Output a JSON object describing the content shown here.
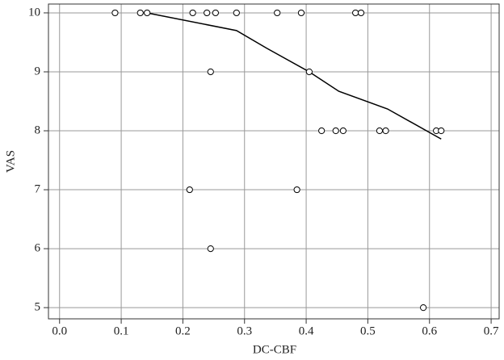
{
  "chart_data": {
    "type": "scatter",
    "x_label": "DC-CBF",
    "y_label": "VAS",
    "points": {
      "color": "#000000",
      "x": [
        0.09,
        0.131,
        0.142,
        0.216,
        0.239,
        0.253,
        0.287,
        0.353,
        0.392,
        0.48,
        0.489,
        0.245,
        0.405,
        0.425,
        0.448,
        0.46,
        0.519,
        0.529,
        0.611,
        0.619,
        0.211,
        0.385,
        0.245,
        0.59
      ],
      "y": [
        10,
        10,
        10,
        10,
        10,
        10,
        10,
        10,
        10,
        10,
        10,
        9,
        9,
        8,
        8,
        8,
        8,
        8,
        8,
        8,
        7,
        7,
        6,
        5
      ]
    },
    "fit": {
      "color": "#000000",
      "x": [
        0.142,
        0.287,
        0.336,
        0.405,
        0.453,
        0.532,
        0.619
      ],
      "y": [
        10,
        9.7,
        9.4,
        9.0,
        8.67,
        8.37,
        7.86
      ]
    },
    "xlim": [
      -0.018,
      0.713
    ],
    "ylim": [
      4.81,
      10.15
    ],
    "xticks": [
      {
        "value": 0,
        "label": "0.0"
      },
      0.1,
      0.2,
      0.3,
      0.4,
      0.5,
      0.6,
      0.7
    ],
    "yticks": [
      5,
      6,
      7,
      8,
      9,
      10
    ],
    "grid": true
  }
}
